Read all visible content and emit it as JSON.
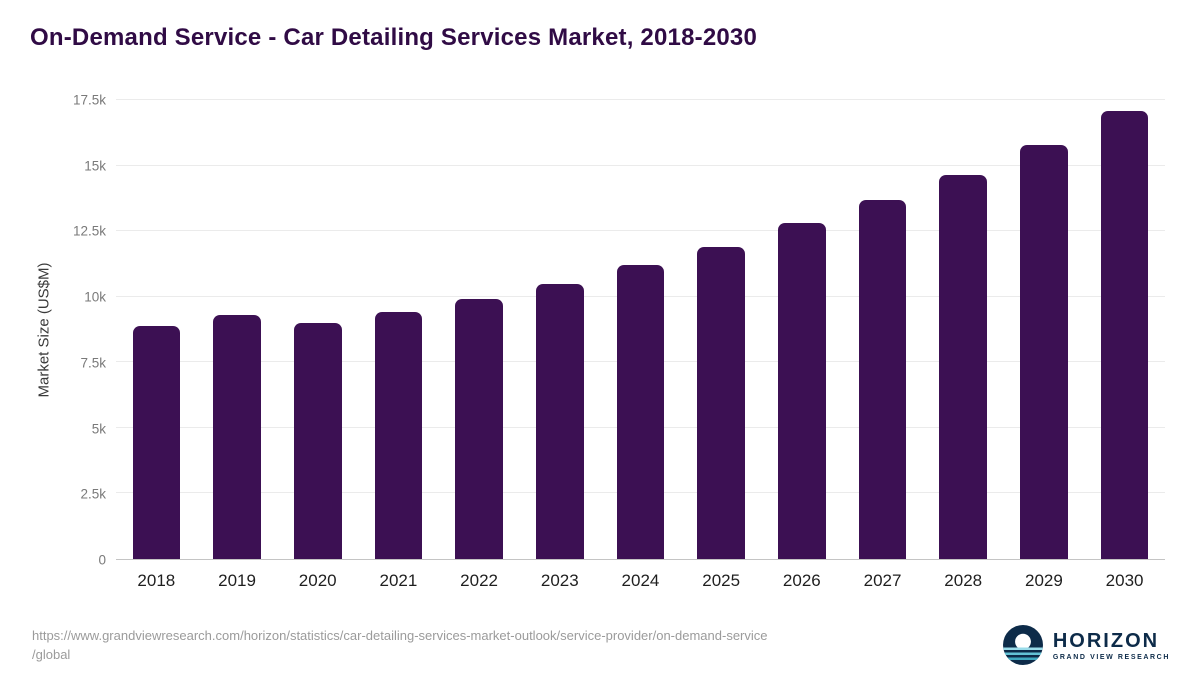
{
  "title": "On-Demand Service - Car Detailing Services Market, 2018-2030",
  "chart_data": {
    "type": "bar",
    "categories": [
      "2018",
      "2019",
      "2020",
      "2021",
      "2022",
      "2023",
      "2024",
      "2025",
      "2026",
      "2027",
      "2028",
      "2029",
      "2030"
    ],
    "values": [
      8900,
      9300,
      9000,
      9400,
      9900,
      10500,
      11200,
      11900,
      12800,
      13700,
      14650,
      15800,
      17100
    ],
    "title": "On-Demand Service - Car Detailing Services Market, 2018-2030",
    "xlabel": "",
    "ylabel": "Market Size (US$M)",
    "ylim": [
      0,
      17500
    ],
    "yticks": [
      0,
      2500,
      5000,
      7500,
      10000,
      12500,
      15000,
      17500
    ],
    "ytick_labels": [
      "0",
      "2.5k",
      "5k",
      "7.5k",
      "10k",
      "12.5k",
      "15k",
      "17.5k"
    ],
    "bar_color": "#3c1053",
    "grid": true,
    "legend": "none"
  },
  "footer": {
    "source_url_line1": "https://www.grandviewresearch.com/horizon/statistics/car-detailing-services-market-outlook/service-provider/on-demand-service",
    "source_url_line2": "/global",
    "logo": {
      "name": "HORIZON",
      "subtitle": "GRAND VIEW RESEARCH"
    }
  },
  "colors": {
    "title": "#300b45",
    "bar": "#3c1053",
    "logo_navy": "#0d2b49",
    "logo_teal": "#63c3d6"
  }
}
